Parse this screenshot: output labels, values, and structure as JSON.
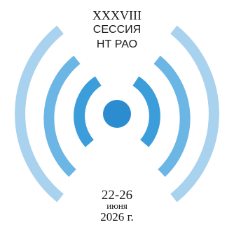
{
  "header": {
    "roman_number": "XXXVIII",
    "session_word": "СЕССИЯ",
    "org": "НТ РАО"
  },
  "footer": {
    "dates": "22-26",
    "month": "июня",
    "year": "2026 г."
  },
  "colors": {
    "outer_arcs": "#a9d2ee",
    "middle_arcs": "#6cb6e6",
    "inner_arcs": "#3b9dd9",
    "center_dot": "#2b8ccf"
  },
  "icon": "radio-wave-emblem"
}
